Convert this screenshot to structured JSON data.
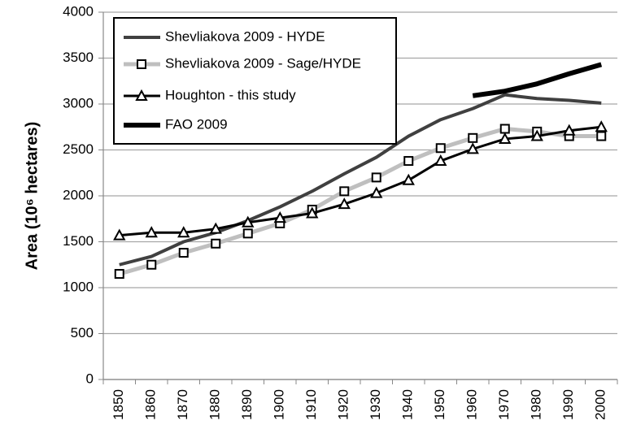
{
  "chart_data": {
    "type": "line",
    "y_label": "Area (10⁶ hectares)",
    "categories": [
      "1850",
      "1860",
      "1870",
      "1880",
      "1890",
      "1900",
      "1910",
      "1920",
      "1930",
      "1940",
      "1950",
      "1960",
      "1970",
      "1980",
      "1990",
      "2000"
    ],
    "series": [
      {
        "name": "Shevliakova 2009 - HYDE",
        "color": "#404040",
        "width": 4,
        "marker": "none",
        "values": [
          1250,
          1340,
          1500,
          1600,
          1730,
          1880,
          2050,
          2240,
          2420,
          2650,
          2830,
          2950,
          3100,
          3060,
          3040,
          3010
        ]
      },
      {
        "name": "Shevliakova 2009 - Sage/HYDE",
        "color": "#bfbfbf",
        "width": 5,
        "marker": "square",
        "values": [
          1150,
          1250,
          1380,
          1480,
          1590,
          1700,
          1850,
          2050,
          2200,
          2380,
          2520,
          2630,
          2730,
          2700,
          2650,
          2650
        ]
      },
      {
        "name": "Houghton - this study",
        "color": "#000000",
        "width": 3,
        "marker": "triangle",
        "values": [
          1570,
          1600,
          1600,
          1640,
          1710,
          1760,
          1810,
          1910,
          2030,
          2170,
          2380,
          2510,
          2620,
          2650,
          2710,
          2750
        ]
      },
      {
        "name": "FAO 2009",
        "color": "#000000",
        "width": 6,
        "marker": "none",
        "values": [
          null,
          null,
          null,
          null,
          null,
          null,
          null,
          null,
          null,
          null,
          null,
          3090,
          3140,
          3220,
          3330,
          3430
        ]
      }
    ],
    "ylim": [
      0,
      4000
    ],
    "yticks": [
      0,
      500,
      1000,
      1500,
      2000,
      2500,
      3000,
      3500,
      4000
    ],
    "grid": true,
    "legend": "upper-left"
  }
}
